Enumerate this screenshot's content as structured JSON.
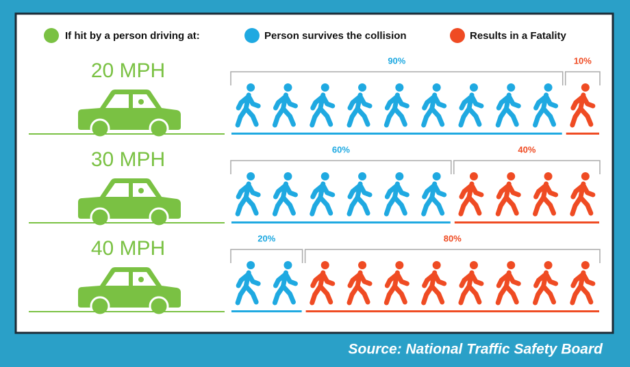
{
  "chart_data": {
    "type": "pictogram",
    "legend_title": "If hit by a person driving at:",
    "legend_title_color": "#7ac143",
    "categories": [
      "20 MPH",
      "30 MPH",
      "40 MPH"
    ],
    "series": [
      {
        "name": "Person survives the collision",
        "color": "#1fa9e1",
        "values": [
          90,
          60,
          20
        ],
        "value_labels": [
          "90%",
          "60%",
          "20%"
        ]
      },
      {
        "name": "Results in a Fatality",
        "color": "#ef4b23",
        "values": [
          10,
          40,
          80
        ],
        "value_labels": [
          "10%",
          "40%",
          "80%"
        ]
      }
    ]
  },
  "source": "Source: National Traffic Safety Board"
}
